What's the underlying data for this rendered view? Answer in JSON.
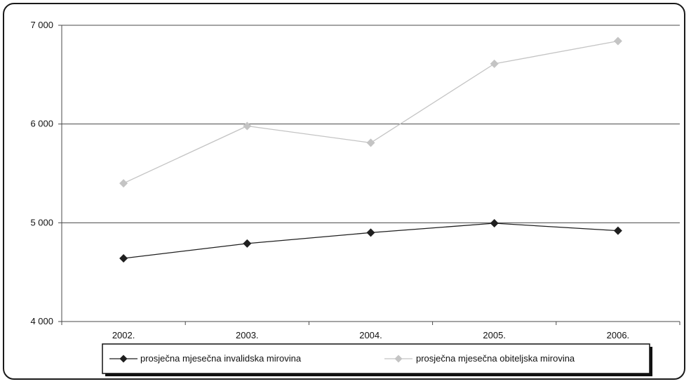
{
  "chart_data": {
    "type": "line",
    "title": "",
    "xlabel": "",
    "ylabel": "",
    "categories": [
      "2002.",
      "2003.",
      "2004.",
      "2005.",
      "2006."
    ],
    "ylim": [
      4000,
      7000
    ],
    "y_ticks": [
      4000,
      5000,
      6000,
      7000
    ],
    "y_tick_labels": [
      "4 000",
      "5 000",
      "6 000",
      "7 000"
    ],
    "grid": "horizontal",
    "legend_position": "bottom",
    "series": [
      {
        "name": "prosječna mjesečna invalidska mirovina",
        "values": [
          4640,
          4790,
          4900,
          4995,
          4920
        ],
        "color": "#1f1f1f",
        "marker": "diamond"
      },
      {
        "name": "prosječna mjesečna obiteljska mirovina",
        "values": [
          5400,
          5980,
          5810,
          6610,
          6840
        ],
        "color": "#c4c4c4",
        "marker": "diamond"
      }
    ]
  }
}
